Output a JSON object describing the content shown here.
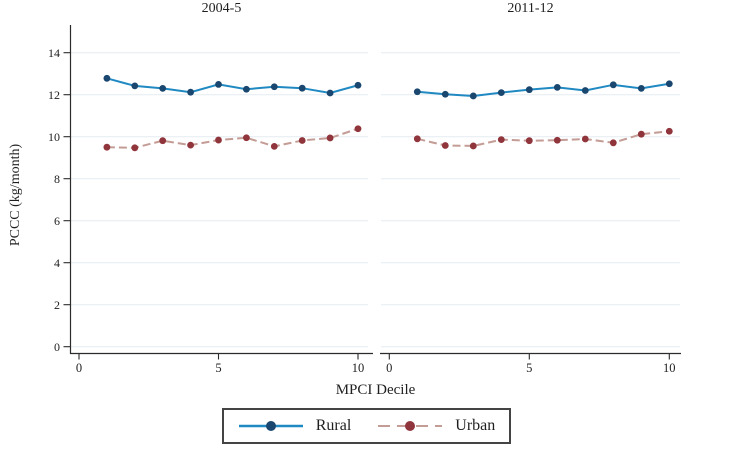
{
  "figure": {
    "ylabel": "PCCC (kg/month)",
    "xlabel": "MPCI Decile"
  },
  "legend": {
    "items": [
      {
        "label": "Rural",
        "style": "solid"
      },
      {
        "label": "Urban",
        "style": "dashed"
      }
    ]
  },
  "colors": {
    "rural_line": "#2089c2",
    "rural_marker": "#1a476f",
    "urban_line": "#c49c96",
    "urban_marker": "#90353b",
    "grid": "#e7eef3",
    "axis": "#2b2b2b",
    "text": "#1f1f1f"
  },
  "chart_data": [
    {
      "type": "line",
      "title": "2004-5",
      "x": [
        1,
        2,
        3,
        4,
        5,
        6,
        7,
        8,
        9,
        10
      ],
      "series": [
        {
          "name": "Rural",
          "values": [
            12.78,
            12.42,
            12.3,
            12.12,
            12.49,
            12.26,
            12.38,
            12.31,
            12.08,
            12.45
          ]
        },
        {
          "name": "Urban",
          "values": [
            9.5,
            9.47,
            9.81,
            9.6,
            9.84,
            9.95,
            9.54,
            9.82,
            9.94,
            10.38
          ]
        }
      ],
      "xlabel": "MPCI Decile",
      "ylabel": "PCCC (kg/month)",
      "xlim": [
        -0.3,
        10.4
      ],
      "ylim": [
        -0.3,
        15.3
      ],
      "x_ticks": [
        0,
        5,
        10
      ],
      "y_ticks": [
        0,
        2,
        4,
        6,
        8,
        10,
        12,
        14
      ],
      "grid": true,
      "legend_position": "bottom"
    },
    {
      "type": "line",
      "title": "2011-12",
      "x": [
        1,
        2,
        3,
        4,
        5,
        6,
        7,
        8,
        9,
        10
      ],
      "series": [
        {
          "name": "Rural",
          "values": [
            12.14,
            12.02,
            11.94,
            12.1,
            12.24,
            12.35,
            12.2,
            12.47,
            12.3,
            12.52
          ]
        },
        {
          "name": "Urban",
          "values": [
            9.9,
            9.58,
            9.56,
            9.86,
            9.81,
            9.83,
            9.89,
            9.71,
            10.12,
            10.26
          ]
        }
      ],
      "xlabel": "MPCI Decile",
      "ylabel": "PCCC (kg/month)",
      "xlim": [
        -0.3,
        10.4
      ],
      "ylim": [
        -0.3,
        15.3
      ],
      "x_ticks": [
        0,
        5,
        10
      ],
      "y_ticks": [
        0,
        2,
        4,
        6,
        8,
        10,
        12,
        14
      ],
      "grid": true,
      "legend_position": "bottom"
    }
  ]
}
